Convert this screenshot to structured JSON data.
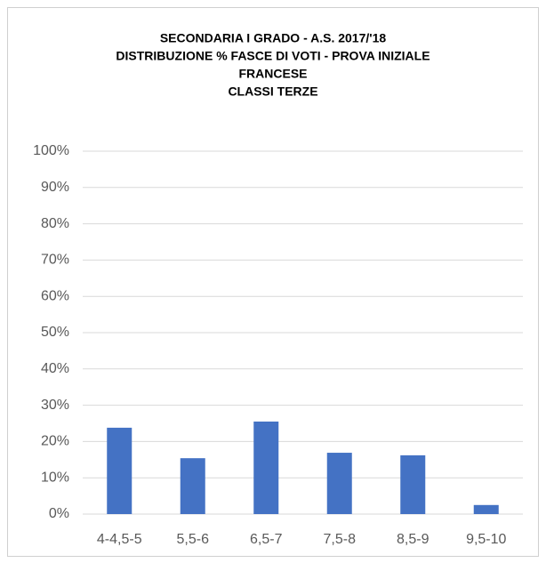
{
  "chart_data": {
    "type": "bar",
    "title": [
      "SECONDARIA I GRADO - A.S. 2017/'18",
      "DISTRIBUZIONE % FASCE DI VOTI - PROVA INIZIALE",
      "FRANCESE",
      "CLASSI TERZE"
    ],
    "categories": [
      "4-4,5-5",
      "5,5-6",
      "6,5-7",
      "7,5-8",
      "8,5-9",
      "9,5-10"
    ],
    "values": [
      23.8,
      15.4,
      25.5,
      16.9,
      16.2,
      2.5
    ],
    "color": "#4472c4",
    "ylim": [
      0,
      100
    ],
    "yticks": [
      {
        "value": 0,
        "label": "0%"
      },
      {
        "value": 10,
        "label": "10%"
      },
      {
        "value": 20,
        "label": "20%"
      },
      {
        "value": 30,
        "label": "30%"
      },
      {
        "value": 40,
        "label": "40%"
      },
      {
        "value": 50,
        "label": "50%"
      },
      {
        "value": 60,
        "label": "60%"
      },
      {
        "value": 70,
        "label": "70%"
      },
      {
        "value": 80,
        "label": "80%"
      },
      {
        "value": 90,
        "label": "90%"
      },
      {
        "value": 100,
        "label": "100%"
      }
    ],
    "grid": true
  }
}
